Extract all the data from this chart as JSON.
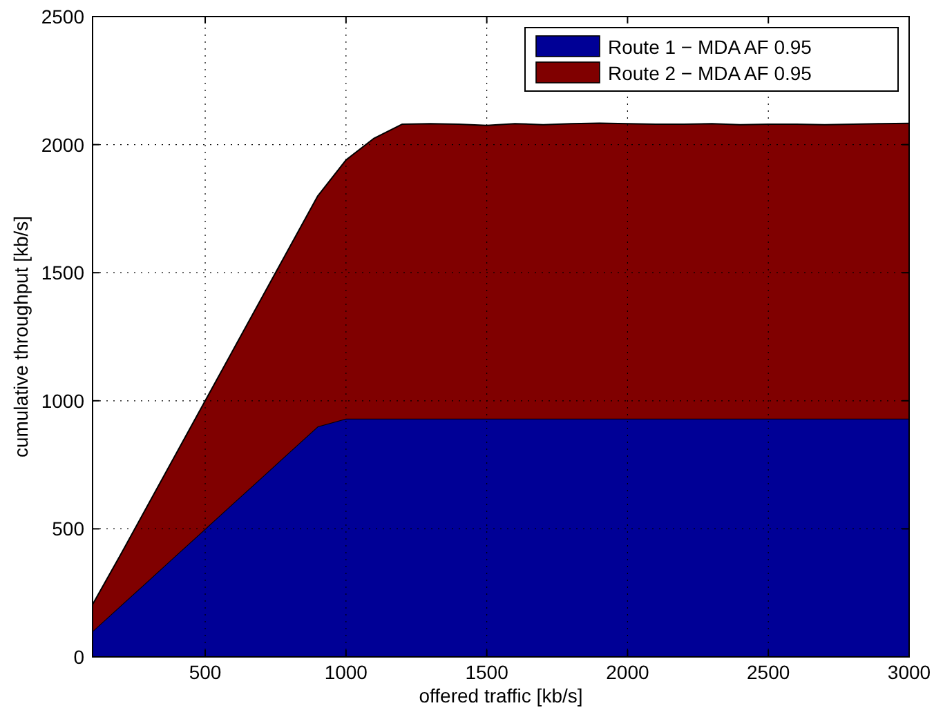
{
  "chart_data": {
    "type": "area",
    "stacked": true,
    "xlabel": "offered traffic [kb/s]",
    "ylabel": "cumulative throughput [kb/s]",
    "x": [
      100,
      200,
      300,
      400,
      500,
      600,
      700,
      800,
      900,
      1000,
      1100,
      1200,
      1300,
      1400,
      1500,
      1600,
      1700,
      1800,
      1900,
      2000,
      2100,
      2200,
      2300,
      2400,
      2500,
      2600,
      2700,
      2800,
      2900,
      3000
    ],
    "series": [
      {
        "name": "Route 1 − MDA AF 0.95",
        "color": "#000096",
        "values": [
          100,
          200,
          300,
          400,
          500,
          600,
          700,
          800,
          900,
          930,
          930,
          930,
          930,
          930,
          930,
          930,
          930,
          930,
          930,
          930,
          930,
          930,
          930,
          930,
          930,
          930,
          930,
          930,
          930,
          930
        ]
      },
      {
        "name": "Route 2 − MDA AF 0.95",
        "color": "#800000",
        "values": [
          105,
          200,
          300,
          400,
          500,
          600,
          700,
          800,
          900,
          1010,
          1095,
          1150,
          1152,
          1150,
          1145,
          1152,
          1148,
          1152,
          1154,
          1152,
          1150,
          1150,
          1152,
          1148,
          1150,
          1150,
          1148,
          1150,
          1152,
          1153
        ]
      }
    ],
    "xlim": [
      100,
      3000
    ],
    "xticks": [
      500,
      1000,
      1500,
      2000,
      2500,
      3000
    ],
    "ylim": [
      0,
      2500
    ],
    "yticks": [
      0,
      500,
      1000,
      1500,
      2000,
      2500
    ],
    "grid": true,
    "legend": "top right"
  }
}
